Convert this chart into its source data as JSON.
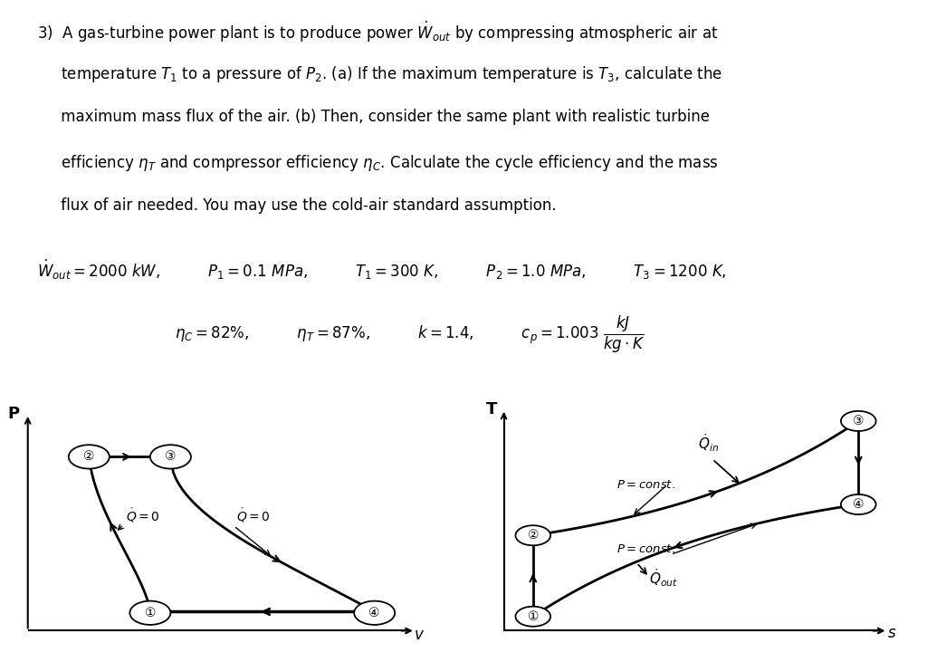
{
  "bg_color": "#ffffff",
  "text_color": "#000000",
  "title_lines": [
    "3)  A gas-turbine power plant is to produce power $\\dot{W}_{out}$ by compressing atmospheric air at",
    "     temperature $T_1$ to a pressure of $P_2$. (a) If the maximum temperature is $T_3$, calculate the",
    "     maximum mass flux of the air. (b) Then, consider the same plant with realistic turbine",
    "     efficiency $\\eta_T$ and compressor efficiency $\\eta_C$. Calculate the cycle efficiency and the mass",
    "     flux of air needed. You may use the cold-air standard assumption."
  ],
  "params1": "$\\dot{W}_{out} = 2000\\ kW$,          $P_1 = 0.1\\ MPa$,          $T_1 = 300\\ K$,          $P_2 = 1.0\\ MPa$,          $T_3 = 1200\\ K$,",
  "params2": "$\\eta_C = 82\\%$,          $\\eta_T = 87\\%$,          $k = 1.4$,          $c_p = 1.003\\ \\dfrac{kJ}{kg \\cdot K}$",
  "font_size": 12.0
}
